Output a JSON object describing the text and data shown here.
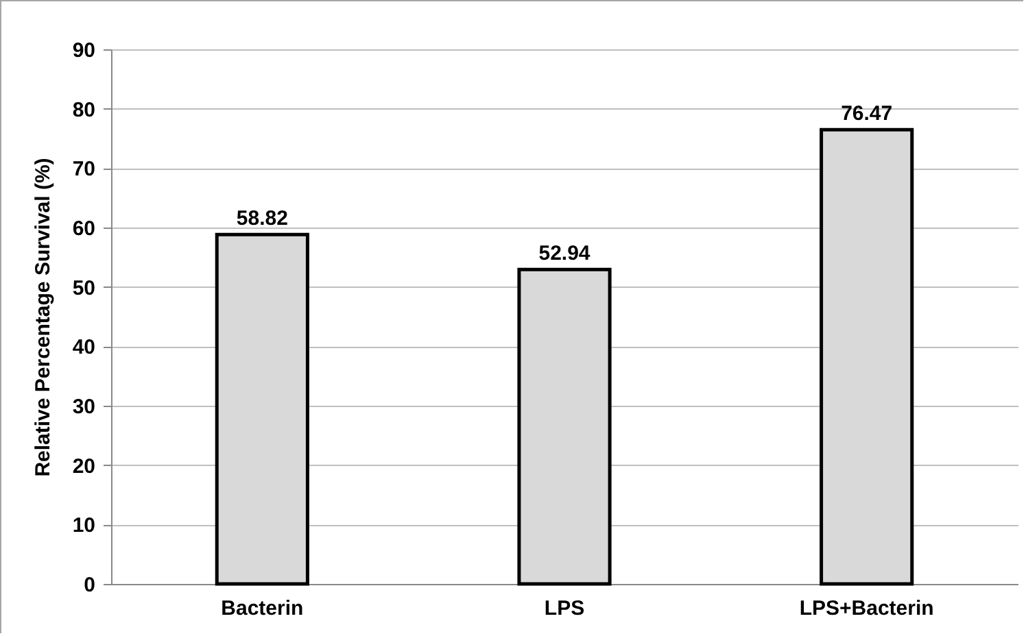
{
  "chart_data": {
    "type": "bar",
    "ylabel": "Relative Percentage Survival (%)",
    "categories": [
      "Bacterin",
      "LPS",
      "LPS+Bacterin"
    ],
    "values": [
      58.82,
      52.94,
      76.47
    ],
    "color": "#d9d9d9",
    "ylim": [
      0,
      90
    ],
    "yticks": [
      0,
      10,
      20,
      30,
      40,
      50,
      60,
      70,
      80,
      90
    ],
    "grid": "y",
    "data_labels": true
  }
}
